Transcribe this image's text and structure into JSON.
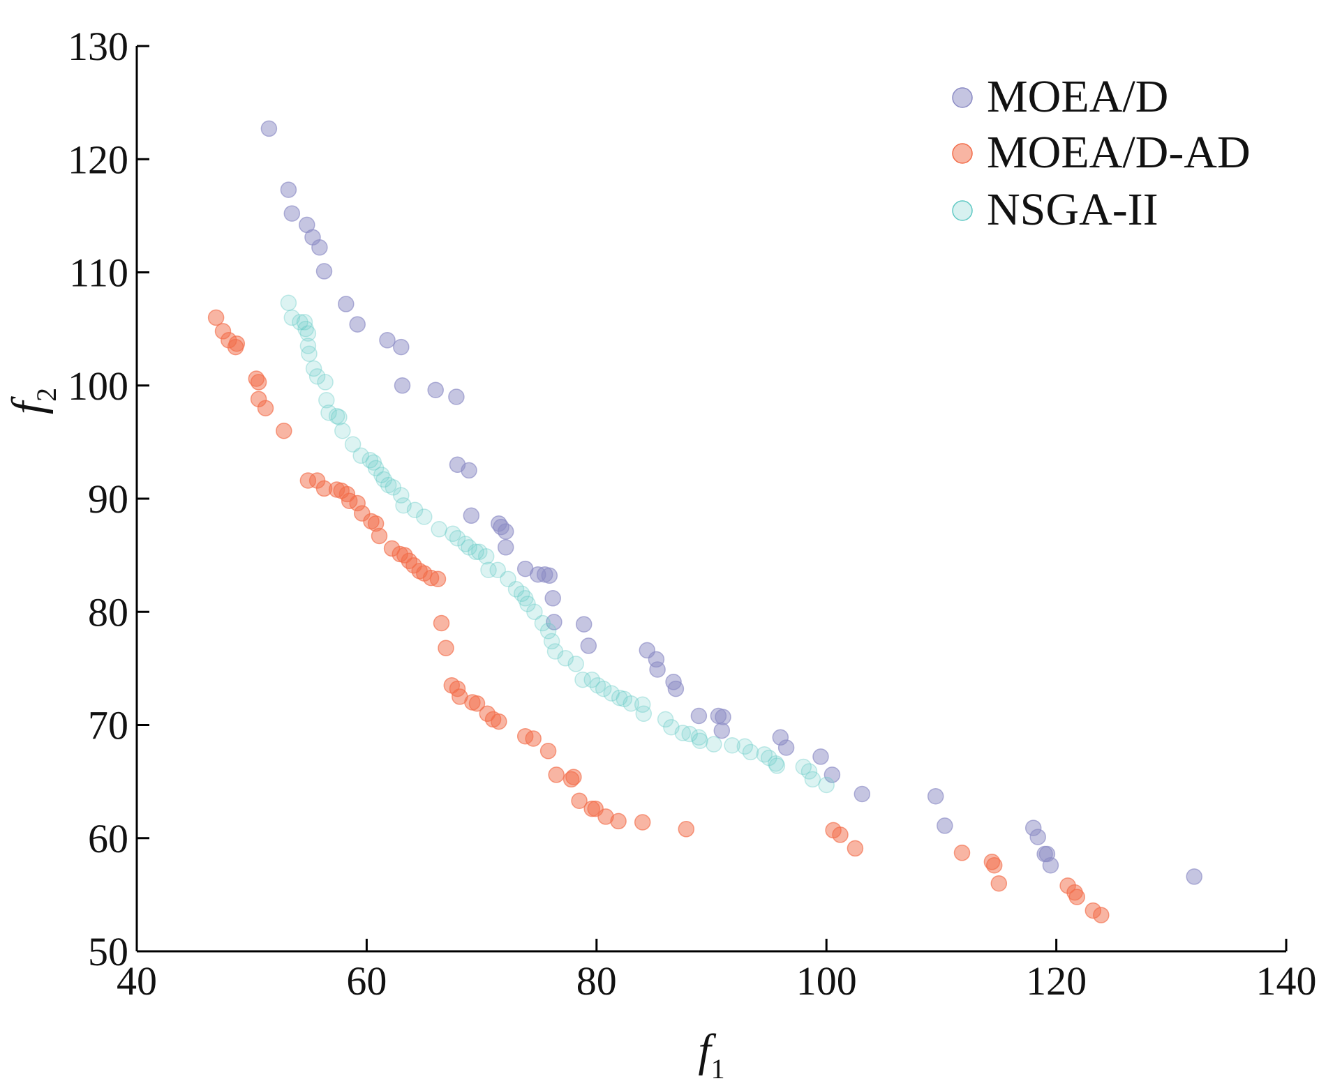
{
  "chart_data": {
    "type": "scatter",
    "x_axis": {
      "label": "f",
      "label_subscript": "1",
      "range": [
        40,
        140
      ],
      "ticks": [
        40,
        60,
        80,
        100,
        120,
        140
      ],
      "tick_labels": [
        "40",
        "60",
        "80",
        "100",
        "120",
        "140"
      ]
    },
    "y_axis": {
      "label": "f",
      "label_subscript": "2",
      "range": [
        50,
        130
      ],
      "ticks": [
        50,
        60,
        70,
        80,
        90,
        100,
        110,
        120,
        130
      ],
      "tick_labels": [
        "50",
        "60",
        "70",
        "80",
        "90",
        "100",
        "110",
        "120",
        "130"
      ]
    },
    "grid": false,
    "legend_position": "top-right",
    "series": [
      {
        "name": "MOEA/D",
        "color": "#8b8bc4",
        "points": [
          [
            51.5,
            122.7
          ],
          [
            53.2,
            117.3
          ],
          [
            53.5,
            115.2
          ],
          [
            54.8,
            114.2
          ],
          [
            55.3,
            113.1
          ],
          [
            55.9,
            112.2
          ],
          [
            56.3,
            110.1
          ],
          [
            58.2,
            107.2
          ],
          [
            59.2,
            105.4
          ],
          [
            61.8,
            104.0
          ],
          [
            63.0,
            103.4
          ],
          [
            63.1,
            100.0
          ],
          [
            66.0,
            99.6
          ],
          [
            67.8,
            99.0
          ],
          [
            67.9,
            93.0
          ],
          [
            68.9,
            92.5
          ],
          [
            69.1,
            88.5
          ],
          [
            71.5,
            87.8
          ],
          [
            71.7,
            87.5
          ],
          [
            72.1,
            87.1
          ],
          [
            72.1,
            85.7
          ],
          [
            73.8,
            83.8
          ],
          [
            74.9,
            83.3
          ],
          [
            75.5,
            83.3
          ],
          [
            75.9,
            83.2
          ],
          [
            76.2,
            81.2
          ],
          [
            76.3,
            79.1
          ],
          [
            78.9,
            78.9
          ],
          [
            79.3,
            77.0
          ],
          [
            84.4,
            76.6
          ],
          [
            85.2,
            75.8
          ],
          [
            85.3,
            74.9
          ],
          [
            86.7,
            73.8
          ],
          [
            86.9,
            73.2
          ],
          [
            88.9,
            70.8
          ],
          [
            90.6,
            70.8
          ],
          [
            91.0,
            70.7
          ],
          [
            90.9,
            69.5
          ],
          [
            96.0,
            68.9
          ],
          [
            96.5,
            68.0
          ],
          [
            99.5,
            67.2
          ],
          [
            100.5,
            65.6
          ],
          [
            103.1,
            63.9
          ],
          [
            109.5,
            63.7
          ],
          [
            110.3,
            61.1
          ],
          [
            118.0,
            60.9
          ],
          [
            118.4,
            60.1
          ],
          [
            119.0,
            58.6
          ],
          [
            119.2,
            58.6
          ],
          [
            119.5,
            57.6
          ],
          [
            132.0,
            56.6
          ]
        ]
      },
      {
        "name": "MOEA/D-AD",
        "color": "#f26b48",
        "points": [
          [
            46.9,
            106.0
          ],
          [
            47.5,
            104.8
          ],
          [
            48.0,
            104.0
          ],
          [
            48.6,
            103.4
          ],
          [
            48.7,
            103.7
          ],
          [
            50.4,
            100.6
          ],
          [
            50.6,
            100.3
          ],
          [
            50.6,
            98.8
          ],
          [
            51.2,
            98.0
          ],
          [
            52.8,
            96.0
          ],
          [
            54.9,
            91.6
          ],
          [
            55.7,
            91.6
          ],
          [
            56.3,
            90.9
          ],
          [
            57.4,
            90.8
          ],
          [
            57.8,
            90.7
          ],
          [
            58.3,
            90.4
          ],
          [
            58.5,
            89.8
          ],
          [
            59.2,
            89.6
          ],
          [
            59.6,
            88.7
          ],
          [
            60.4,
            88.0
          ],
          [
            60.8,
            87.8
          ],
          [
            61.1,
            86.7
          ],
          [
            62.2,
            85.6
          ],
          [
            62.9,
            85.1
          ],
          [
            63.3,
            85.0
          ],
          [
            63.7,
            84.5
          ],
          [
            64.1,
            84.1
          ],
          [
            64.6,
            83.6
          ],
          [
            65.0,
            83.4
          ],
          [
            65.6,
            83.0
          ],
          [
            66.2,
            82.9
          ],
          [
            66.5,
            79.0
          ],
          [
            66.9,
            76.8
          ],
          [
            67.4,
            73.5
          ],
          [
            67.9,
            73.2
          ],
          [
            68.1,
            72.5
          ],
          [
            69.2,
            72.0
          ],
          [
            69.6,
            71.9
          ],
          [
            70.5,
            71.0
          ],
          [
            71.0,
            70.5
          ],
          [
            71.5,
            70.3
          ],
          [
            73.8,
            69.0
          ],
          [
            74.5,
            68.8
          ],
          [
            75.8,
            67.7
          ],
          [
            76.5,
            65.6
          ],
          [
            77.8,
            65.2
          ],
          [
            78.0,
            65.4
          ],
          [
            78.5,
            63.3
          ],
          [
            79.6,
            62.6
          ],
          [
            79.9,
            62.6
          ],
          [
            80.8,
            61.9
          ],
          [
            81.9,
            61.5
          ],
          [
            84.0,
            61.4
          ],
          [
            87.8,
            60.8
          ],
          [
            100.6,
            60.7
          ],
          [
            101.2,
            60.3
          ],
          [
            102.5,
            59.1
          ],
          [
            111.8,
            58.7
          ],
          [
            114.4,
            57.9
          ],
          [
            114.6,
            57.6
          ],
          [
            115.0,
            56.0
          ],
          [
            121.0,
            55.8
          ],
          [
            121.6,
            55.2
          ],
          [
            121.8,
            54.8
          ],
          [
            123.2,
            53.6
          ],
          [
            123.9,
            53.2
          ]
        ]
      },
      {
        "name": "NSGA-II",
        "color": "#5ec8c3",
        "points": [
          [
            53.2,
            107.3
          ],
          [
            53.5,
            106.0
          ],
          [
            54.2,
            105.6
          ],
          [
            54.6,
            105.6
          ],
          [
            54.7,
            105.0
          ],
          [
            54.9,
            104.6
          ],
          [
            54.9,
            103.5
          ],
          [
            55.0,
            102.8
          ],
          [
            55.4,
            101.5
          ],
          [
            55.7,
            100.8
          ],
          [
            56.4,
            100.3
          ],
          [
            56.5,
            98.7
          ],
          [
            56.7,
            97.6
          ],
          [
            57.4,
            97.3
          ],
          [
            57.6,
            97.2
          ],
          [
            57.9,
            96.0
          ],
          [
            58.8,
            94.8
          ],
          [
            59.5,
            93.8
          ],
          [
            60.3,
            93.4
          ],
          [
            60.6,
            93.2
          ],
          [
            60.8,
            92.7
          ],
          [
            61.3,
            92.1
          ],
          [
            61.5,
            91.7
          ],
          [
            61.9,
            91.2
          ],
          [
            62.3,
            91.0
          ],
          [
            63.0,
            90.3
          ],
          [
            63.2,
            89.4
          ],
          [
            64.2,
            89.0
          ],
          [
            65.0,
            88.4
          ],
          [
            66.3,
            87.3
          ],
          [
            67.5,
            86.9
          ],
          [
            67.9,
            86.5
          ],
          [
            68.6,
            86.0
          ],
          [
            68.9,
            85.7
          ],
          [
            69.5,
            85.3
          ],
          [
            69.8,
            85.3
          ],
          [
            70.4,
            84.9
          ],
          [
            70.6,
            83.7
          ],
          [
            71.4,
            83.7
          ],
          [
            72.3,
            82.9
          ],
          [
            73.0,
            82.0
          ],
          [
            73.5,
            81.6
          ],
          [
            73.8,
            81.2
          ],
          [
            74.0,
            80.7
          ],
          [
            74.6,
            80.0
          ],
          [
            75.3,
            79.0
          ],
          [
            75.8,
            78.3
          ],
          [
            76.1,
            77.4
          ],
          [
            76.4,
            76.5
          ],
          [
            77.3,
            75.9
          ],
          [
            78.2,
            75.4
          ],
          [
            78.8,
            74.0
          ],
          [
            79.6,
            74.0
          ],
          [
            80.1,
            73.5
          ],
          [
            80.6,
            73.2
          ],
          [
            81.3,
            72.8
          ],
          [
            82.0,
            72.4
          ],
          [
            82.4,
            72.3
          ],
          [
            83.0,
            71.9
          ],
          [
            84.0,
            71.8
          ],
          [
            84.1,
            71.0
          ],
          [
            86.0,
            70.5
          ],
          [
            86.5,
            69.8
          ],
          [
            87.5,
            69.3
          ],
          [
            88.1,
            69.2
          ],
          [
            88.9,
            68.9
          ],
          [
            89.0,
            68.6
          ],
          [
            90.2,
            68.3
          ],
          [
            91.8,
            68.2
          ],
          [
            92.9,
            68.1
          ],
          [
            93.4,
            67.6
          ],
          [
            94.6,
            67.4
          ],
          [
            95.0,
            67.1
          ],
          [
            95.6,
            66.6
          ],
          [
            95.7,
            66.4
          ],
          [
            98.0,
            66.3
          ],
          [
            98.5,
            65.9
          ],
          [
            98.8,
            65.2
          ],
          [
            100.0,
            64.7
          ]
        ]
      }
    ]
  },
  "legend": {
    "items": [
      "MOEA/D",
      "MOEA/D-AD",
      "NSGA-II"
    ]
  }
}
